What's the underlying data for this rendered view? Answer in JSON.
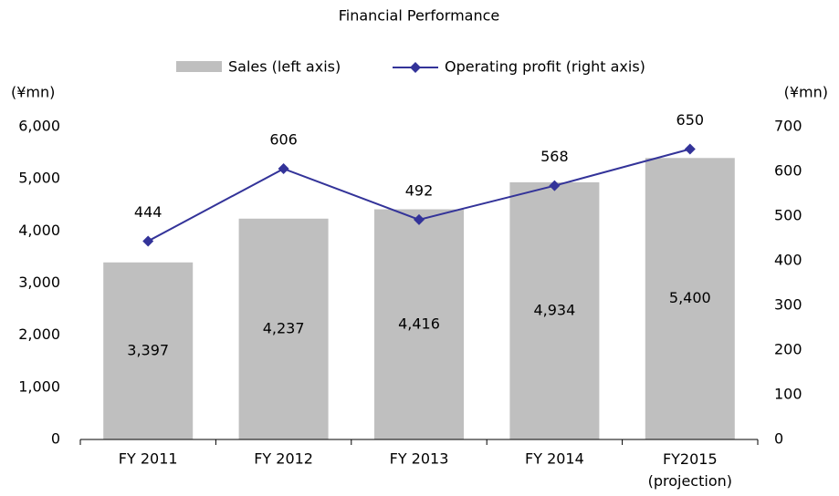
{
  "chart_data": {
    "type": "bar_line",
    "title": "Financial Performance",
    "categories": [
      "FY 2011",
      "FY 2012",
      "FY 2013",
      "FY 2014",
      "FY2015\n(projection)"
    ],
    "series": [
      {
        "name": "Sales (left axis)",
        "type": "bar",
        "color": "#bfbfbf",
        "axis": "y",
        "values": [
          3397,
          4237,
          4416,
          4934,
          5400
        ],
        "value_labels": [
          "3,397",
          "4,237",
          "4,416",
          "4,934",
          "5,400"
        ]
      },
      {
        "name": "Operating profit (right axis)",
        "type": "line",
        "color": "#333399",
        "axis": "y2",
        "values": [
          444,
          606,
          492,
          568,
          650
        ]
      }
    ],
    "ylabel": "(¥mn)",
    "y2label": "(¥mn)",
    "ylim": [
      0,
      6000
    ],
    "yticks": [
      0,
      {
        "value": 1000,
        "label": "1,000"
      },
      {
        "value": 2000,
        "label": "2,000"
      },
      {
        "value": 3000,
        "label": "3,000"
      },
      {
        "value": 4000,
        "label": "4,000"
      },
      {
        "value": 5000,
        "label": "5,000"
      },
      {
        "value": 6000,
        "label": "6,000"
      }
    ],
    "y2lim": [
      0,
      700
    ],
    "y2ticks": [
      0,
      100,
      200,
      300,
      400,
      500,
      600,
      700
    ],
    "legend": "top",
    "grid": false
  }
}
